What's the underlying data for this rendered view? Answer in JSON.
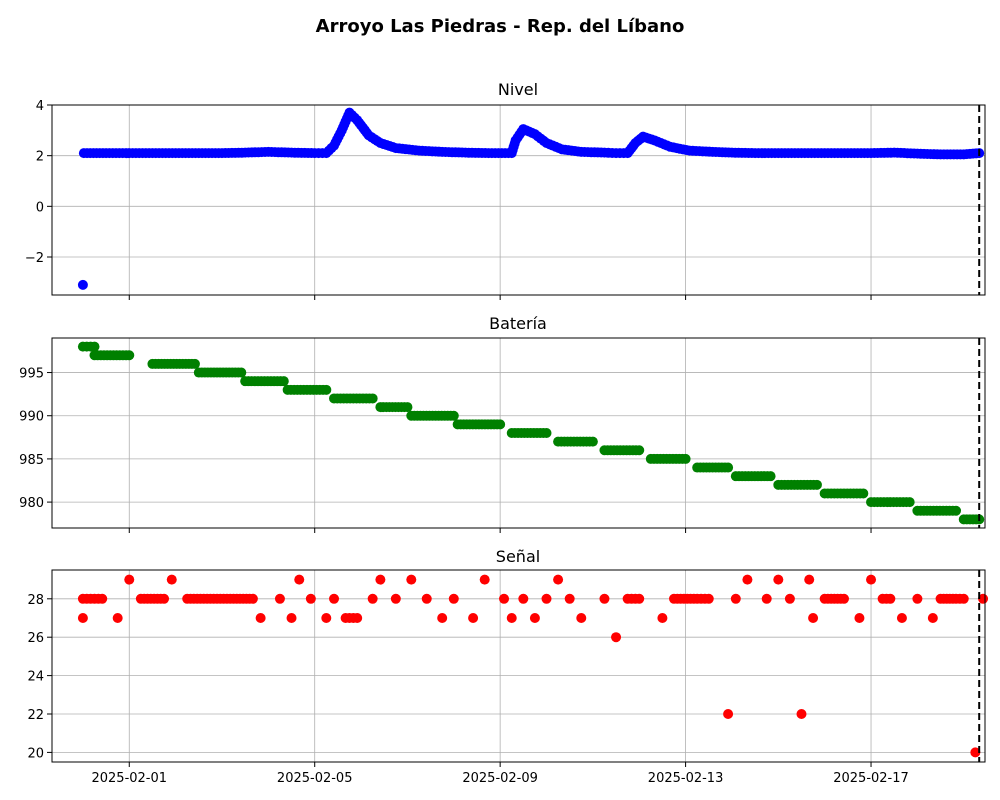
{
  "chart_data": {
    "title": "Arroyo Las Piedras - Rep. del Líbano",
    "type": "scatter",
    "x_axis": {
      "kind": "date",
      "range": [
        "2025-01-30T08:00",
        "2025-02-19T11:00"
      ],
      "ticks": [
        "2025-02-01",
        "2025-02-05",
        "2025-02-09",
        "2025-02-13",
        "2025-02-17"
      ],
      "tick_labels": [
        "2025-02-01",
        "2025-02-05",
        "2025-02-09",
        "2025-02-13",
        "2025-02-17"
      ]
    },
    "vertical_marker": {
      "x": "2025-02-19T08:00",
      "style": "dashed",
      "color": "#000000"
    },
    "grid": true,
    "panels": [
      {
        "title": "Nivel",
        "color": "#0000ff",
        "ylim": [
          -3.5,
          4.0
        ],
        "yticks": [
          -2,
          0,
          2,
          4
        ],
        "ytick_labels": [
          "−2",
          "0",
          "2",
          "4"
        ],
        "series": [
          [
            "2025-01-31T00:00",
            -3.1
          ],
          [
            "2025-01-31T00:30",
            2.1
          ],
          [
            "2025-01-31T12:00",
            2.1
          ],
          [
            "2025-02-01T00:00",
            2.1
          ],
          [
            "2025-02-01T12:00",
            2.1
          ],
          [
            "2025-02-02T00:00",
            2.1
          ],
          [
            "2025-02-02T12:00",
            2.1
          ],
          [
            "2025-02-03T00:00",
            2.1
          ],
          [
            "2025-02-03T12:00",
            2.12
          ],
          [
            "2025-02-04T00:00",
            2.15
          ],
          [
            "2025-02-04T12:00",
            2.12
          ],
          [
            "2025-02-05T00:00",
            2.1
          ],
          [
            "2025-02-05T06:00",
            2.1
          ],
          [
            "2025-02-05T10:00",
            2.4
          ],
          [
            "2025-02-05T14:00",
            3.0
          ],
          [
            "2025-02-05T18:00",
            3.7
          ],
          [
            "2025-02-05T22:00",
            3.4
          ],
          [
            "2025-02-06T04:00",
            2.8
          ],
          [
            "2025-02-06T10:00",
            2.5
          ],
          [
            "2025-02-06T18:00",
            2.3
          ],
          [
            "2025-02-07T06:00",
            2.2
          ],
          [
            "2025-02-07T18:00",
            2.15
          ],
          [
            "2025-02-08T06:00",
            2.12
          ],
          [
            "2025-02-08T18:00",
            2.1
          ],
          [
            "2025-02-09T06:00",
            2.1
          ],
          [
            "2025-02-09T08:00",
            2.6
          ],
          [
            "2025-02-09T12:00",
            3.05
          ],
          [
            "2025-02-09T18:00",
            2.85
          ],
          [
            "2025-02-10T00:00",
            2.5
          ],
          [
            "2025-02-10T08:00",
            2.25
          ],
          [
            "2025-02-10T18:00",
            2.15
          ],
          [
            "2025-02-11T06:00",
            2.12
          ],
          [
            "2025-02-11T12:00",
            2.1
          ],
          [
            "2025-02-11T18:00",
            2.1
          ],
          [
            "2025-02-11T22:00",
            2.5
          ],
          [
            "2025-02-12T02:00",
            2.75
          ],
          [
            "2025-02-12T08:00",
            2.6
          ],
          [
            "2025-02-12T16:00",
            2.35
          ],
          [
            "2025-02-13T02:00",
            2.2
          ],
          [
            "2025-02-13T14:00",
            2.15
          ],
          [
            "2025-02-14T00:00",
            2.12
          ],
          [
            "2025-02-14T12:00",
            2.1
          ],
          [
            "2025-02-15T00:00",
            2.1
          ],
          [
            "2025-02-15T12:00",
            2.1
          ],
          [
            "2025-02-16T00:00",
            2.1
          ],
          [
            "2025-02-16T12:00",
            2.1
          ],
          [
            "2025-02-17T00:00",
            2.1
          ],
          [
            "2025-02-17T12:00",
            2.12
          ],
          [
            "2025-02-18T00:00",
            2.08
          ],
          [
            "2025-02-18T12:00",
            2.05
          ],
          [
            "2025-02-19T00:00",
            2.05
          ],
          [
            "2025-02-19T08:00",
            2.1
          ]
        ]
      },
      {
        "title": "Batería",
        "color": "#008000",
        "ylim": [
          977,
          999
        ],
        "yticks": [
          980,
          985,
          990,
          995
        ],
        "ytick_labels": [
          "980",
          "985",
          "990",
          "995"
        ],
        "series": [
          [
            "2025-01-31T00:00",
            998
          ],
          [
            "2025-01-31T06:00",
            998
          ],
          [
            "2025-01-31T06:00",
            997
          ],
          [
            "2025-02-01T00:00",
            997
          ],
          [
            "2025-02-01T12:00",
            996
          ],
          [
            "2025-02-02T10:00",
            996
          ],
          [
            "2025-02-02T12:00",
            995
          ],
          [
            "2025-02-03T10:00",
            995
          ],
          [
            "2025-02-03T12:00",
            994
          ],
          [
            "2025-02-04T08:00",
            994
          ],
          [
            "2025-02-04T10:00",
            993
          ],
          [
            "2025-02-05T06:00",
            993
          ],
          [
            "2025-02-05T10:00",
            992
          ],
          [
            "2025-02-06T06:00",
            992
          ],
          [
            "2025-02-06T10:00",
            991
          ],
          [
            "2025-02-07T00:00",
            991
          ],
          [
            "2025-02-07T02:00",
            990
          ],
          [
            "2025-02-08T00:00",
            990
          ],
          [
            "2025-02-08T02:00",
            989
          ],
          [
            "2025-02-09T00:00",
            989
          ],
          [
            "2025-02-09T06:00",
            988
          ],
          [
            "2025-02-10T00:00",
            988
          ],
          [
            "2025-02-10T06:00",
            987
          ],
          [
            "2025-02-11T00:00",
            987
          ],
          [
            "2025-02-11T06:00",
            986
          ],
          [
            "2025-02-12T00:00",
            986
          ],
          [
            "2025-02-12T06:00",
            985
          ],
          [
            "2025-02-13T00:00",
            985
          ],
          [
            "2025-02-13T06:00",
            984
          ],
          [
            "2025-02-13T22:00",
            984
          ],
          [
            "2025-02-14T02:00",
            983
          ],
          [
            "2025-02-14T20:00",
            983
          ],
          [
            "2025-02-15T00:00",
            982
          ],
          [
            "2025-02-15T20:00",
            982
          ],
          [
            "2025-02-16T00:00",
            981
          ],
          [
            "2025-02-16T20:00",
            981
          ],
          [
            "2025-02-17T00:00",
            980
          ],
          [
            "2025-02-17T20:00",
            980
          ],
          [
            "2025-02-18T00:00",
            979
          ],
          [
            "2025-02-18T20:00",
            979
          ],
          [
            "2025-02-19T00:00",
            978
          ],
          [
            "2025-02-19T08:00",
            978
          ]
        ]
      },
      {
        "title": "Señal",
        "color": "#ff0000",
        "ylim": [
          19.5,
          29.5
        ],
        "yticks": [
          20,
          22,
          24,
          26,
          28
        ],
        "ytick_labels": [
          "20",
          "22",
          "24",
          "26",
          "28"
        ],
        "series": [
          [
            "2025-01-31T00:00",
            27
          ],
          [
            "2025-01-31T00:00",
            28
          ],
          [
            "2025-01-31T06:00",
            28
          ],
          [
            "2025-01-31T10:00",
            28
          ],
          [
            "2025-01-31T18:00",
            27
          ],
          [
            "2025-02-01T00:00",
            29
          ],
          [
            "2025-02-01T06:00",
            28
          ],
          [
            "2025-02-01T18:00",
            28
          ],
          [
            "2025-02-01T22:00",
            29
          ],
          [
            "2025-02-02T06:00",
            28
          ],
          [
            "2025-02-02T18:00",
            28
          ],
          [
            "2025-02-03T06:00",
            28
          ],
          [
            "2025-02-03T16:00",
            28
          ],
          [
            "2025-02-03T20:00",
            27
          ],
          [
            "2025-02-04T06:00",
            28
          ],
          [
            "2025-02-04T12:00",
            27
          ],
          [
            "2025-02-04T16:00",
            29
          ],
          [
            "2025-02-04T22:00",
            28
          ],
          [
            "2025-02-05T06:00",
            27
          ],
          [
            "2025-02-05T10:00",
            28
          ],
          [
            "2025-02-05T16:00",
            27
          ],
          [
            "2025-02-05T22:00",
            27
          ],
          [
            "2025-02-06T06:00",
            28
          ],
          [
            "2025-02-06T10:00",
            29
          ],
          [
            "2025-02-06T18:00",
            28
          ],
          [
            "2025-02-07T02:00",
            29
          ],
          [
            "2025-02-07T10:00",
            28
          ],
          [
            "2025-02-07T18:00",
            27
          ],
          [
            "2025-02-08T00:00",
            28
          ],
          [
            "2025-02-08T10:00",
            27
          ],
          [
            "2025-02-08T16:00",
            29
          ],
          [
            "2025-02-09T02:00",
            28
          ],
          [
            "2025-02-09T06:00",
            27
          ],
          [
            "2025-02-09T12:00",
            28
          ],
          [
            "2025-02-09T18:00",
            27
          ],
          [
            "2025-02-10T00:00",
            28
          ],
          [
            "2025-02-10T06:00",
            29
          ],
          [
            "2025-02-10T12:00",
            28
          ],
          [
            "2025-02-10T18:00",
            27
          ],
          [
            "2025-02-11T06:00",
            28
          ],
          [
            "2025-02-11T12:00",
            26
          ],
          [
            "2025-02-11T18:00",
            28
          ],
          [
            "2025-02-12T00:00",
            28
          ],
          [
            "2025-02-12T12:00",
            27
          ],
          [
            "2025-02-12T18:00",
            28
          ],
          [
            "2025-02-13T06:00",
            28
          ],
          [
            "2025-02-13T12:00",
            28
          ],
          [
            "2025-02-13T22:00",
            22
          ],
          [
            "2025-02-14T02:00",
            28
          ],
          [
            "2025-02-14T08:00",
            29
          ],
          [
            "2025-02-14T18:00",
            28
          ],
          [
            "2025-02-15T00:00",
            29
          ],
          [
            "2025-02-15T06:00",
            28
          ],
          [
            "2025-02-15T12:00",
            22
          ],
          [
            "2025-02-15T16:00",
            29
          ],
          [
            "2025-02-15T18:00",
            27
          ],
          [
            "2025-02-16T00:00",
            28
          ],
          [
            "2025-02-16T10:00",
            28
          ],
          [
            "2025-02-16T18:00",
            27
          ],
          [
            "2025-02-17T00:00",
            29
          ],
          [
            "2025-02-17T06:00",
            28
          ],
          [
            "2025-02-17T10:00",
            28
          ],
          [
            "2025-02-17T16:00",
            27
          ],
          [
            "2025-02-18T00:00",
            28
          ],
          [
            "2025-02-18T08:00",
            27
          ],
          [
            "2025-02-18T12:00",
            28
          ],
          [
            "2025-02-18T20:00",
            28
          ],
          [
            "2025-02-19T00:00",
            28
          ],
          [
            "2025-02-19T06:00",
            20
          ],
          [
            "2025-02-19T10:00",
            28
          ]
        ]
      }
    ]
  }
}
